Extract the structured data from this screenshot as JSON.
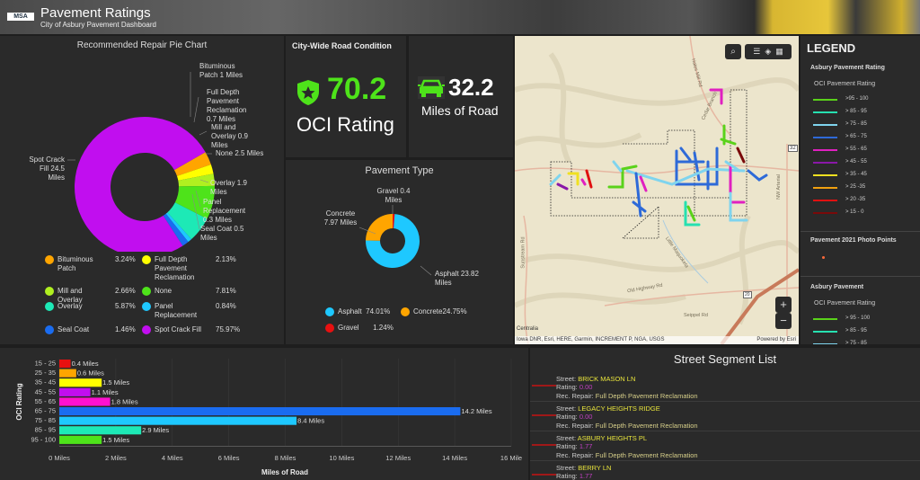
{
  "header": {
    "logo": "MSA",
    "title": "Pavement Ratings",
    "subtitle": "City of Asbury Pavement Dashboard"
  },
  "repair_chart": {
    "title": "Recommended Repair Pie Chart",
    "chart_data": {
      "type": "pie",
      "title": "Recommended Repair Pie Chart",
      "slices": [
        {
          "label": "Bituminous Patch",
          "miles": 1,
          "percent": "3.24%",
          "callout": "Bituminous Patch 1 Miles",
          "color": "#ffa500"
        },
        {
          "label": "Full Depth Pavement Reclamation",
          "miles": 0.7,
          "percent": "2.13%",
          "callout": "Full Depth Pavement Reclamation 0.7 Miles",
          "color": "#ffff00"
        },
        {
          "label": "Mill and Overlay",
          "miles": 0.9,
          "percent": "2.66%",
          "callout": "Mill and Overlay 0.9 Miles",
          "color": "#b0f020"
        },
        {
          "label": "None",
          "miles": 2.5,
          "percent": "7.81%",
          "callout": "None 2.5 Miles",
          "color": "#4ee31a"
        },
        {
          "label": "Overlay",
          "miles": 1.9,
          "percent": "5.87%",
          "callout": "Overlay 1.9 Miles",
          "color": "#1de9b6"
        },
        {
          "label": "Panel Replacement",
          "miles": 0.3,
          "percent": "0.84%",
          "callout": "Panel Replacement 0.3 Miles",
          "color": "#1ec8ff"
        },
        {
          "label": "Seal Coat",
          "miles": 0.5,
          "percent": "1.46%",
          "callout": "Seal Coat 0.5 Miles",
          "color": "#1a6cf0"
        },
        {
          "label": "Spot Crack Fill",
          "miles": 24.5,
          "percent": "75.97%",
          "callout": "Spot Crack Fill 24.5 Miles",
          "color": "#c10eef"
        }
      ]
    }
  },
  "kpi_oci": {
    "title": "City-Wide Road Condition",
    "value": "70.2",
    "label": "OCI Rating",
    "icon": "shield-star-icon",
    "color": "#4ee31a"
  },
  "kpi_miles": {
    "value": "32.2",
    "label": "Miles of Road",
    "icon": "car-icon",
    "color": "#4ee31a"
  },
  "pavement_type": {
    "title": "Pavement Type",
    "chart_data": {
      "type": "pie",
      "title": "Pavement Type",
      "slices": [
        {
          "label": "Gravel",
          "miles": 0.4,
          "percent": "1.24%",
          "callout": "Gravel 0.4 Miles",
          "color": "#e81010"
        },
        {
          "label": "Asphalt",
          "miles": 23.82,
          "percent": "74.01%",
          "callout": "Asphalt 23.82 Miles",
          "color": "#1ec8ff"
        },
        {
          "label": "Concrete",
          "miles": 7.97,
          "percent": "24.75%",
          "callout": "Concrete 7.97 Miles",
          "color": "#ffa500"
        }
      ]
    }
  },
  "map": {
    "road_labels": [
      "Hales Mill Rd",
      "Cedar Branch",
      "NW Arterial",
      "Sunstream Rd",
      "Little Maquoketa",
      "Old Highway Rd",
      "Seippel Rd",
      "Centralia"
    ],
    "shields": [
      "32",
      "20"
    ],
    "attribution": "Iowa DNR, Esri, HERE, Garmin, INCREMENT P, NGA, USGS",
    "powered_by": "Powered by Esri",
    "zoom_in": "+",
    "zoom_out": "−"
  },
  "legend": {
    "title": "LEGEND",
    "layer1": "Asbury Pavement Rating",
    "field": "OCI Pavement Rating",
    "classes": [
      {
        "label": ">95 - 100",
        "color": "#5ad21a"
      },
      {
        "label": "> 85 - 95",
        "color": "#26e0b0"
      },
      {
        "label": "> 75 - 85",
        "color": "#7fd4ee"
      },
      {
        "label": "> 65 - 75",
        "color": "#2e6ad8"
      },
      {
        "label": "> 55 - 65",
        "color": "#e020c0"
      },
      {
        "label": "> 45 - 55",
        "color": "#8a18a8"
      },
      {
        "label": "> 35 - 45",
        "color": "#f0e020"
      },
      {
        "label": "> 25 -35",
        "color": "#f0a010"
      },
      {
        "label": "> 20 -35",
        "color": "#e01010"
      },
      {
        "label": "> 15 - 0",
        "color": "#7a0a0a"
      }
    ],
    "layer2": "Pavement 2021 Photo Points",
    "layer2_color": "#ff6a3a",
    "layer3": "Asbury Pavement",
    "field3": "OCI Pavement Rating",
    "classes3": [
      {
        "label": "> 95 - 100",
        "color": "#5ad21a"
      },
      {
        "label": "> 85 - 95",
        "color": "#26e0b0"
      },
      {
        "label": "> 75 - 85",
        "color": "#7fd4ee"
      }
    ]
  },
  "bar_chart": {
    "chart_data": {
      "type": "bar",
      "orientation": "horizontal",
      "ylabel": "OCI Rating",
      "xlabel": "Miles of Road",
      "xlim": [
        0,
        16
      ],
      "grid": true,
      "categories": [
        "15 - 25",
        "25 - 35",
        "35 - 45",
        "45 - 55",
        "55 - 65",
        "65 - 75",
        "75 - 85",
        "85 - 95",
        "95 - 100"
      ],
      "values": [
        0.4,
        0.6,
        1.5,
        1.1,
        1.8,
        14.2,
        8.4,
        2.9,
        1.5
      ],
      "data_labels": [
        "0.4 Miles",
        "0.6 Miles",
        "1.5 Miles",
        "1.1 Miles",
        "1.8 Miles",
        "14.2 Miles",
        "8.4 Miles",
        "2.9 Miles",
        "1.5 Miles"
      ],
      "colors": [
        "#e81010",
        "#ffa500",
        "#ffff00",
        "#c10eef",
        "#ff10d0",
        "#1a6cf0",
        "#1ec8ff",
        "#1de9b6",
        "#4ee31a"
      ],
      "xticks": [
        "0 Miles",
        "2 Miles",
        "4 Miles",
        "6 Miles",
        "8 Miles",
        "10 Miles",
        "12 Miles",
        "14 Miles",
        "16 Mile"
      ]
    }
  },
  "street_list": {
    "title": "Street Segment List",
    "street_key": "Street: ",
    "rating_key": "Rating: ",
    "repair_key": "Rec. Repair: ",
    "items": [
      {
        "street": "BRICK MASON LN",
        "rating": "0.00",
        "repair": "Full Depth Pavement Reclamation"
      },
      {
        "street": "LEGACY HEIGHTS RIDGE",
        "rating": "0.00",
        "repair": "Full Depth Pavement Reclamation"
      },
      {
        "street": "ASBURY HEIGHTS PL",
        "rating": "1.77",
        "repair": "Full Depth Pavement Reclamation"
      },
      {
        "street": "BERRY LN",
        "rating": "1.77",
        "repair": ""
      }
    ]
  }
}
